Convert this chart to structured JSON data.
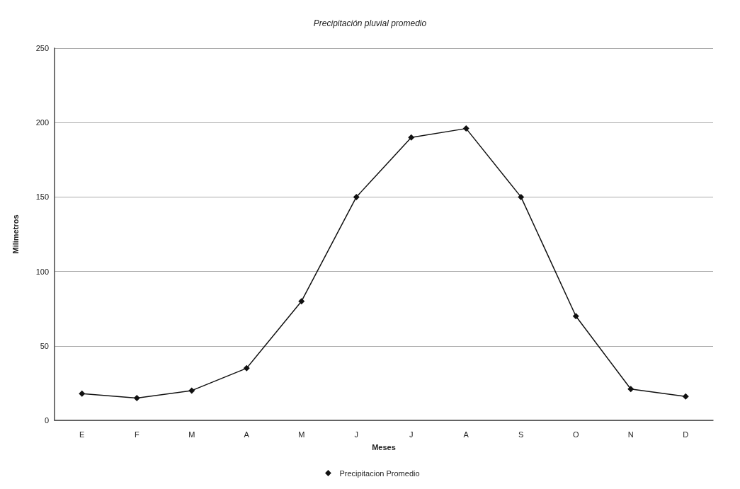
{
  "chart_data": {
    "type": "line",
    "title": "Precipitación pluvial promedio",
    "xlabel": "Meses",
    "ylabel": "Milimetros",
    "categories": [
      "E",
      "F",
      "M",
      "A",
      "M",
      "J",
      "J",
      "A",
      "S",
      "O",
      "N",
      "D"
    ],
    "series": [
      {
        "name": "Precipitacion Promedio",
        "color": "#111111",
        "values": [
          18,
          15,
          20,
          35,
          80,
          150,
          190,
          196,
          150,
          70,
          21,
          16
        ]
      }
    ],
    "ylim": [
      0,
      250
    ],
    "yticks": [
      0,
      50,
      100,
      150,
      200,
      250
    ],
    "grid": "y",
    "legend": "bottom",
    "marker": "diamond",
    "line_style": "solid"
  }
}
